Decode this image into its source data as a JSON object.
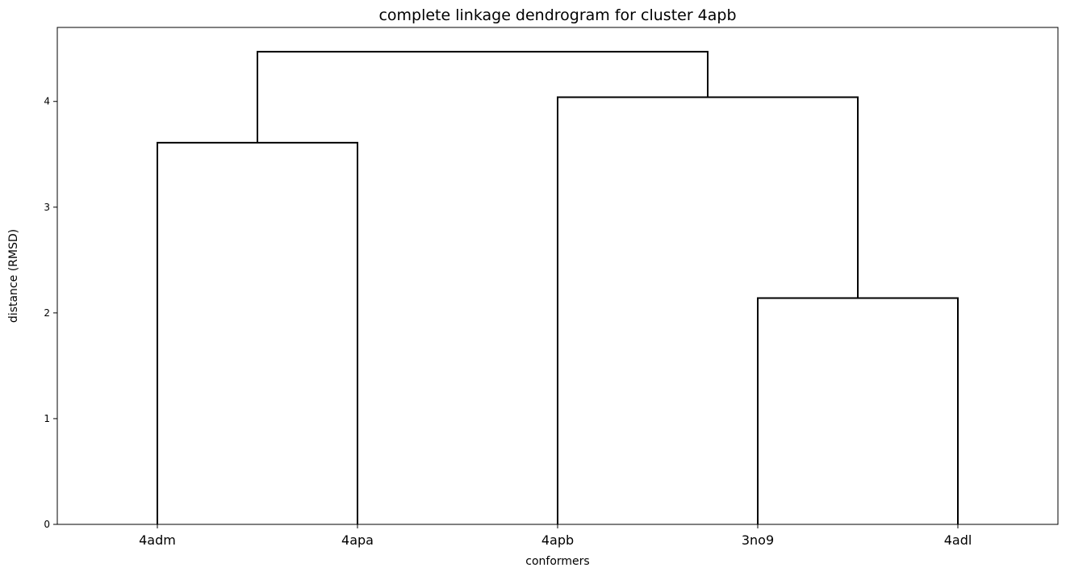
{
  "chart_data": {
    "type": "dendrogram",
    "title": "complete linkage dendrogram for cluster 4apb",
    "xlabel": "conformers",
    "ylabel": "distance (RMSD)",
    "leaves": [
      "4adm",
      "4apa",
      "4apb",
      "3no9",
      "4adl"
    ],
    "yticks": [
      0,
      1,
      2,
      3,
      4
    ],
    "ylim": [
      0,
      4.7
    ],
    "merges": [
      {
        "left": "4adm",
        "right": "4apa",
        "height": 3.61
      },
      {
        "left": "3no9",
        "right": "4adl",
        "height": 2.14
      },
      {
        "left": "4apb",
        "right": "3no9+4adl",
        "height": 4.04
      },
      {
        "left": "4adm+4apa",
        "right": "4apb+3no9+4adl",
        "height": 4.47
      }
    ],
    "links": [
      {
        "x_from": 1,
        "y_from": 0,
        "x_to": 2,
        "y_to": 0,
        "height": 3.61
      },
      {
        "x_from": 4,
        "y_from": 0,
        "x_to": 5,
        "y_to": 0,
        "height": 2.14
      },
      {
        "x_from": 3,
        "y_from": 0,
        "x_to": 4.5,
        "y_to": 2.14,
        "height": 4.04
      },
      {
        "x_from": 1.5,
        "y_from": 3.61,
        "x_to": 3.75,
        "y_to": 4.04,
        "height": 4.47
      }
    ],
    "line_color": "#000000",
    "grid": false
  }
}
